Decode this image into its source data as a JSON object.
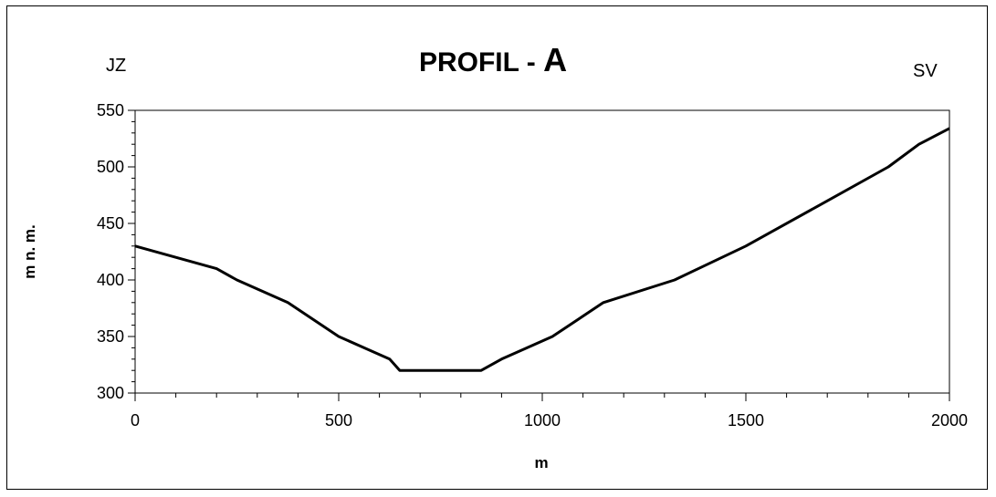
{
  "chart_data": {
    "type": "line",
    "title_prefix": "PROFIL - ",
    "title_suffix": "A",
    "left_direction_label": "JZ",
    "right_direction_label": "SV",
    "xlabel": "m",
    "ylabel": "m n. m.",
    "xlim": [
      0,
      2000
    ],
    "ylim": [
      300,
      550
    ],
    "x_major_ticks": [
      0,
      500,
      1000,
      1500,
      2000
    ],
    "x_minor_step": 100,
    "y_major_ticks": [
      300,
      350,
      400,
      450,
      500,
      550
    ],
    "y_minor_step": 10,
    "grid": false,
    "series": [
      {
        "color": "#000000",
        "points": [
          [
            0,
            430
          ],
          [
            200,
            410
          ],
          [
            250,
            400
          ],
          [
            375,
            380
          ],
          [
            500,
            350
          ],
          [
            625,
            330
          ],
          [
            650,
            320
          ],
          [
            850,
            320
          ],
          [
            900,
            330
          ],
          [
            1025,
            350
          ],
          [
            1150,
            380
          ],
          [
            1325,
            400
          ],
          [
            1500,
            430
          ],
          [
            1675,
            465
          ],
          [
            1850,
            500
          ],
          [
            1925,
            520
          ],
          [
            2000,
            534
          ]
        ]
      }
    ]
  }
}
